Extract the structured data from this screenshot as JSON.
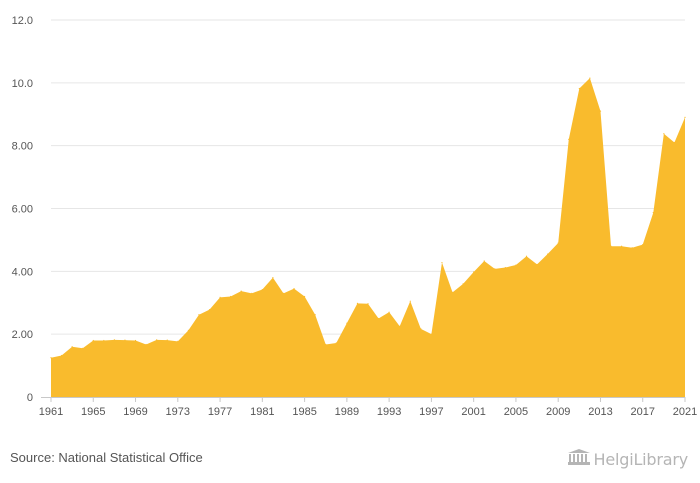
{
  "chart_data": {
    "type": "area",
    "title": "",
    "xlabel": "",
    "ylabel": "",
    "ylim": [
      0,
      12
    ],
    "yticks": [
      {
        "value": 0,
        "label": "0"
      },
      {
        "value": 2,
        "label": "2.00"
      },
      {
        "value": 4,
        "label": "4.00"
      },
      {
        "value": 6,
        "label": "6.00"
      },
      {
        "value": 8,
        "label": "8.00"
      },
      {
        "value": 10,
        "label": "10.0"
      },
      {
        "value": 12,
        "label": "12.0"
      }
    ],
    "xticks": [
      "1961",
      "1965",
      "1969",
      "1973",
      "1977",
      "1981",
      "1985",
      "1989",
      "1993",
      "1997",
      "2001",
      "2005",
      "2009",
      "2013",
      "2017",
      "2021"
    ],
    "grid": true,
    "color": "#f9bb2d",
    "x": [
      1961,
      1962,
      1963,
      1964,
      1965,
      1966,
      1967,
      1968,
      1969,
      1970,
      1971,
      1972,
      1973,
      1974,
      1975,
      1976,
      1977,
      1978,
      1979,
      1980,
      1981,
      1982,
      1983,
      1984,
      1985,
      1986,
      1987,
      1988,
      1989,
      1990,
      1991,
      1992,
      1993,
      1994,
      1995,
      1996,
      1997,
      1998,
      1999,
      2000,
      2001,
      2002,
      2003,
      2004,
      2005,
      2006,
      2007,
      2008,
      2009,
      2010,
      2011,
      2012,
      2013,
      2014,
      2015,
      2016,
      2017,
      2018,
      2019,
      2020,
      2021
    ],
    "values": [
      1.25,
      1.32,
      1.6,
      1.55,
      1.8,
      1.8,
      1.82,
      1.81,
      1.8,
      1.67,
      1.82,
      1.81,
      1.77,
      2.12,
      2.62,
      2.78,
      3.17,
      3.2,
      3.37,
      3.3,
      3.42,
      3.8,
      3.3,
      3.45,
      3.2,
      2.62,
      1.67,
      1.72,
      2.35,
      2.98,
      2.97,
      2.5,
      2.7,
      2.25,
      3.05,
      2.17,
      2.0,
      4.28,
      3.33,
      3.6,
      3.98,
      4.33,
      4.08,
      4.12,
      4.2,
      4.48,
      4.22,
      4.55,
      4.9,
      8.2,
      9.82,
      10.15,
      9.1,
      4.8,
      4.8,
      4.75,
      4.85,
      5.87,
      8.38,
      8.1,
      8.9
    ]
  },
  "footer": {
    "source": "Source: National Statistical Office",
    "brand": "HelgiLibrary"
  }
}
